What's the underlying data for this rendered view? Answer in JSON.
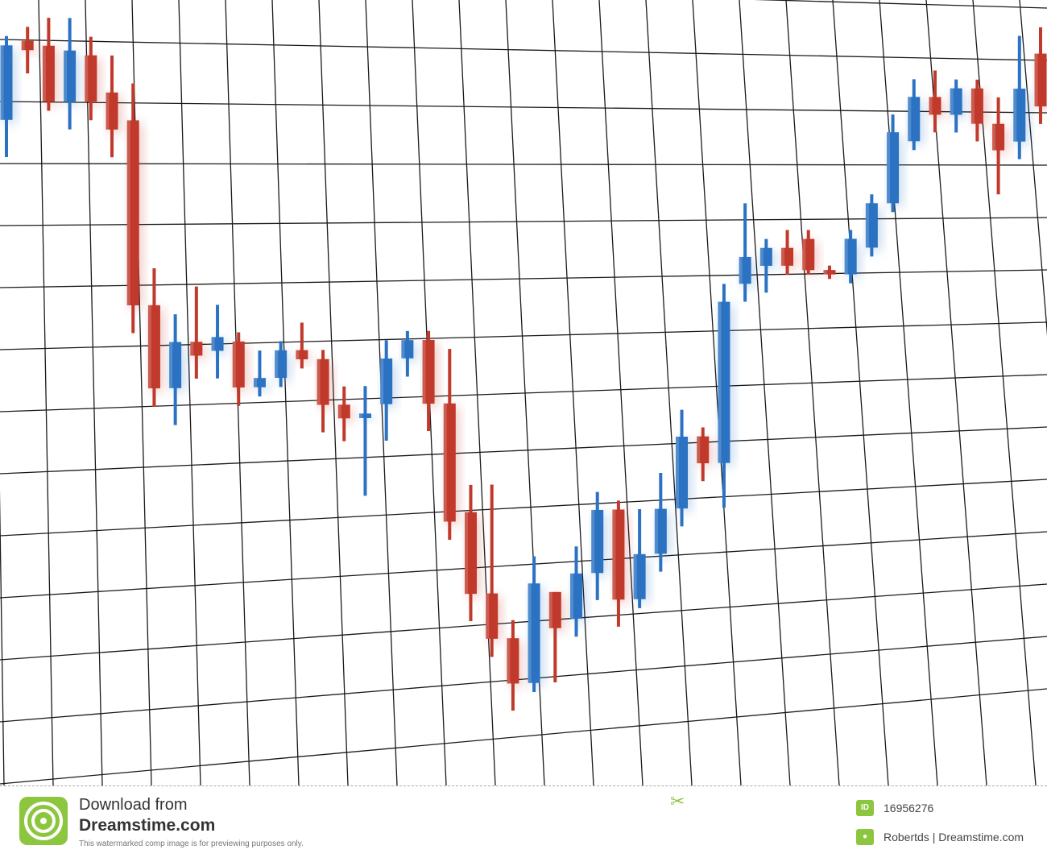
{
  "chart_data": {
    "type": "candlestick",
    "title": "",
    "xlabel": "",
    "ylabel": "",
    "grid": true,
    "colors": {
      "up": "#2b72c2",
      "down": "#c0392b",
      "grid": "#1a1a1a"
    },
    "candles": [
      {
        "x": 1,
        "open": 88.0,
        "close": 96.0,
        "high": 97.0,
        "low": 84.0,
        "dir": "up"
      },
      {
        "x": 2,
        "open": 96.5,
        "close": 95.5,
        "high": 98.0,
        "low": 93.0,
        "dir": "down"
      },
      {
        "x": 3,
        "open": 96.0,
        "close": 90.0,
        "high": 99.0,
        "low": 89.0,
        "dir": "down"
      },
      {
        "x": 4,
        "open": 90.0,
        "close": 95.5,
        "high": 99.0,
        "low": 87.0,
        "dir": "up"
      },
      {
        "x": 5,
        "open": 95.0,
        "close": 90.0,
        "high": 97.0,
        "low": 88.0,
        "dir": "down"
      },
      {
        "x": 6,
        "open": 91.0,
        "close": 87.0,
        "high": 95.0,
        "low": 84.0,
        "dir": "down"
      },
      {
        "x": 7,
        "open": 88.0,
        "close": 68.0,
        "high": 92.0,
        "low": 65.0,
        "dir": "down"
      },
      {
        "x": 8,
        "open": 68.0,
        "close": 59.0,
        "high": 72.0,
        "low": 57.0,
        "dir": "down"
      },
      {
        "x": 9,
        "open": 59.0,
        "close": 64.0,
        "high": 67.0,
        "low": 55.0,
        "dir": "up"
      },
      {
        "x": 10,
        "open": 64.0,
        "close": 62.5,
        "high": 70.0,
        "low": 60.0,
        "dir": "down"
      },
      {
        "x": 11,
        "open": 63.0,
        "close": 64.5,
        "high": 68.0,
        "low": 60.0,
        "dir": "up"
      },
      {
        "x": 12,
        "open": 64.0,
        "close": 59.0,
        "high": 65.0,
        "low": 57.0,
        "dir": "down"
      },
      {
        "x": 13,
        "open": 59.0,
        "close": 60.0,
        "high": 63.0,
        "low": 58.0,
        "dir": "up"
      },
      {
        "x": 14,
        "open": 60.0,
        "close": 63.0,
        "high": 64.0,
        "low": 59.0,
        "dir": "up"
      },
      {
        "x": 15,
        "open": 63.0,
        "close": 62.0,
        "high": 66.0,
        "low": 61.0,
        "dir": "down"
      },
      {
        "x": 16,
        "open": 62.0,
        "close": 57.0,
        "high": 63.0,
        "low": 54.0,
        "dir": "down"
      },
      {
        "x": 17,
        "open": 57.0,
        "close": 55.5,
        "high": 59.0,
        "low": 53.0,
        "dir": "down"
      },
      {
        "x": 18,
        "open": 55.5,
        "close": 56.0,
        "high": 59.0,
        "low": 47.0,
        "dir": "up"
      },
      {
        "x": 19,
        "open": 57.0,
        "close": 62.0,
        "high": 64.0,
        "low": 53.0,
        "dir": "up"
      },
      {
        "x": 20,
        "open": 62.0,
        "close": 64.0,
        "high": 65.0,
        "low": 60.0,
        "dir": "up"
      },
      {
        "x": 21,
        "open": 64.0,
        "close": 57.0,
        "high": 65.0,
        "low": 54.0,
        "dir": "down"
      },
      {
        "x": 22,
        "open": 57.0,
        "close": 44.0,
        "high": 63.0,
        "low": 42.0,
        "dir": "down"
      },
      {
        "x": 23,
        "open": 45.0,
        "close": 36.0,
        "high": 48.0,
        "low": 33.0,
        "dir": "down"
      },
      {
        "x": 24,
        "open": 36.0,
        "close": 31.0,
        "high": 48.0,
        "low": 29.0,
        "dir": "down"
      },
      {
        "x": 25,
        "open": 31.0,
        "close": 26.0,
        "high": 33.0,
        "low": 23.0,
        "dir": "down"
      },
      {
        "x": 26,
        "open": 26.0,
        "close": 37.0,
        "high": 40.0,
        "low": 25.0,
        "dir": "up"
      },
      {
        "x": 27,
        "open": 36.0,
        "close": 32.0,
        "high": 36.0,
        "low": 26.0,
        "dir": "down"
      },
      {
        "x": 28,
        "open": 33.0,
        "close": 38.0,
        "high": 41.0,
        "low": 31.0,
        "dir": "up"
      },
      {
        "x": 29,
        "open": 38.0,
        "close": 45.0,
        "high": 47.0,
        "low": 35.0,
        "dir": "up"
      },
      {
        "x": 30,
        "open": 45.0,
        "close": 35.0,
        "high": 46.0,
        "low": 32.0,
        "dir": "down"
      },
      {
        "x": 31,
        "open": 35.0,
        "close": 40.0,
        "high": 45.0,
        "low": 34.0,
        "dir": "up"
      },
      {
        "x": 32,
        "open": 40.0,
        "close": 45.0,
        "high": 49.0,
        "low": 38.0,
        "dir": "up"
      },
      {
        "x": 33,
        "open": 45.0,
        "close": 53.0,
        "high": 56.0,
        "low": 43.0,
        "dir": "up"
      },
      {
        "x": 34,
        "open": 53.0,
        "close": 50.0,
        "high": 54.0,
        "low": 48.0,
        "dir": "down"
      },
      {
        "x": 35,
        "open": 50.0,
        "close": 68.0,
        "high": 70.0,
        "low": 45.0,
        "dir": "up"
      },
      {
        "x": 36,
        "open": 70.0,
        "close": 73.0,
        "high": 79.0,
        "low": 68.0,
        "dir": "up"
      },
      {
        "x": 37,
        "open": 72.0,
        "close": 74.0,
        "high": 75.0,
        "low": 69.0,
        "dir": "up"
      },
      {
        "x": 38,
        "open": 74.0,
        "close": 72.0,
        "high": 76.0,
        "low": 71.0,
        "dir": "down"
      },
      {
        "x": 39,
        "open": 75.0,
        "close": 71.5,
        "high": 76.0,
        "low": 71.0,
        "dir": "down"
      },
      {
        "x": 40,
        "open": 71.5,
        "close": 71.0,
        "high": 72.0,
        "low": 70.5,
        "dir": "down"
      },
      {
        "x": 41,
        "open": 71.0,
        "close": 75.0,
        "high": 76.0,
        "low": 70.0,
        "dir": "up"
      },
      {
        "x": 42,
        "open": 74.0,
        "close": 79.0,
        "high": 80.0,
        "low": 73.0,
        "dir": "up"
      },
      {
        "x": 43,
        "open": 79.0,
        "close": 87.0,
        "high": 89.0,
        "low": 78.0,
        "dir": "up"
      },
      {
        "x": 44,
        "open": 86.0,
        "close": 91.0,
        "high": 93.0,
        "low": 85.0,
        "dir": "up"
      },
      {
        "x": 45,
        "open": 91.0,
        "close": 89.0,
        "high": 94.0,
        "low": 87.0,
        "dir": "down"
      },
      {
        "x": 46,
        "open": 89.0,
        "close": 92.0,
        "high": 93.0,
        "low": 87.0,
        "dir": "up"
      },
      {
        "x": 47,
        "open": 92.0,
        "close": 88.0,
        "high": 93.0,
        "low": 86.0,
        "dir": "down"
      },
      {
        "x": 48,
        "open": 88.0,
        "close": 85.0,
        "high": 91.0,
        "low": 80.0,
        "dir": "down"
      },
      {
        "x": 49,
        "open": 86.0,
        "close": 92.0,
        "high": 98.0,
        "low": 84.0,
        "dir": "up"
      },
      {
        "x": 50,
        "open": 96.0,
        "close": 90.0,
        "high": 99.0,
        "low": 88.0,
        "dir": "down"
      }
    ]
  },
  "footer": {
    "download_line": "Download from",
    "brand": "Dreamstime.com",
    "notice": "This watermarked comp image is for previewing purposes only.",
    "id_badge": "ID",
    "id_value": "16956276",
    "credit": "Robertds | Dreamstime.com"
  },
  "icons": {
    "logo": "dreamstime-spiral-logo-icon",
    "scissors": "scissors-icon",
    "author": "author-icon"
  }
}
